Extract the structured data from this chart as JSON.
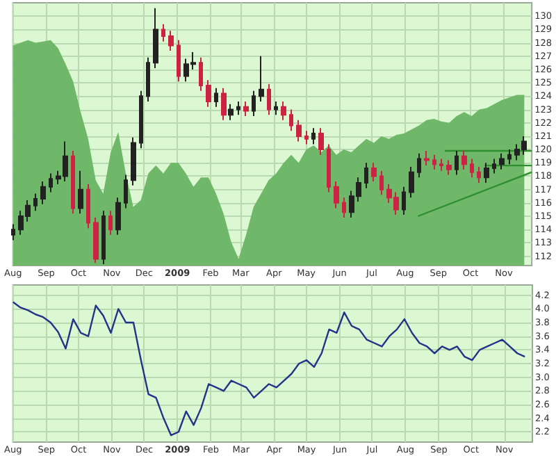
{
  "chart_data": [
    {
      "type": "candlestick",
      "x": [
        "2008-08-01",
        "2008-08-08",
        "2008-08-15",
        "2008-08-22",
        "2008-08-29",
        "2008-09-05",
        "2008-09-12",
        "2008-09-19",
        "2008-09-26",
        "2008-10-03",
        "2008-10-10",
        "2008-10-17",
        "2008-10-24",
        "2008-10-31",
        "2008-11-07",
        "2008-11-14",
        "2008-11-21",
        "2008-11-28",
        "2008-12-05",
        "2008-12-12",
        "2008-12-19",
        "2008-12-26",
        "2009-01-02",
        "2009-01-09",
        "2009-01-16",
        "2009-01-23",
        "2009-01-30",
        "2009-02-06",
        "2009-02-13",
        "2009-02-20",
        "2009-02-27",
        "2009-03-06",
        "2009-03-13",
        "2009-03-20",
        "2009-03-27",
        "2009-04-03",
        "2009-04-10",
        "2009-04-17",
        "2009-04-24",
        "2009-05-01",
        "2009-05-08",
        "2009-05-15",
        "2009-05-22",
        "2009-05-29",
        "2009-06-05",
        "2009-06-12",
        "2009-06-19",
        "2009-06-26",
        "2009-07-03",
        "2009-07-10",
        "2009-07-17",
        "2009-07-24",
        "2009-07-31",
        "2009-08-07",
        "2009-08-14",
        "2009-08-21",
        "2009-08-28",
        "2009-09-04",
        "2009-09-11",
        "2009-09-18",
        "2009-09-25",
        "2009-10-02",
        "2009-10-09",
        "2009-10-16",
        "2009-10-23",
        "2009-10-30",
        "2009-11-06",
        "2009-11-13",
        "2009-11-20"
      ],
      "series": [
        {
          "type": "area",
          "color": "#6fb86a",
          "values": [
            127.8,
            128.0,
            128.2,
            128.0,
            128.1,
            128.2,
            127.6,
            126.4,
            125.1,
            122.8,
            120.8,
            117.7,
            116.7,
            119.8,
            121.3,
            118.2,
            115.7,
            116.2,
            118.2,
            118.8,
            118.2,
            119.0,
            119.0,
            118.2,
            117.2,
            117.9,
            117.9,
            116.7,
            115.2,
            113.1,
            111.8,
            113.6,
            115.7,
            116.7,
            117.7,
            118.2,
            119.0,
            119.6,
            119.0,
            120.0,
            120.3,
            119.8,
            120.3,
            119.6,
            120.0,
            119.8,
            120.3,
            120.8,
            120.5,
            121.0,
            120.8,
            121.1,
            121.2,
            121.5,
            121.8,
            122.2,
            122.3,
            122.1,
            122.0,
            122.5,
            122.8,
            122.5,
            123.0,
            123.1,
            123.4,
            123.7,
            123.9,
            124.1,
            124.1
          ]
        },
        {
          "ohlc": [
            [
              113.6,
              114.4,
              113.2,
              114.0
            ],
            [
              114.0,
              115.4,
              113.6,
              115.0
            ],
            [
              115.0,
              116.2,
              114.6,
              115.8
            ],
            [
              115.8,
              116.7,
              115.4,
              116.3
            ],
            [
              116.3,
              117.6,
              115.9,
              117.2
            ],
            [
              117.2,
              118.2,
              116.8,
              117.8
            ],
            [
              117.8,
              118.4,
              117.4,
              118.0
            ],
            [
              118.0,
              120.6,
              117.6,
              119.5
            ],
            [
              119.5,
              119.9,
              115.2,
              115.6
            ],
            [
              115.6,
              118.4,
              115.2,
              117.0
            ],
            [
              117.0,
              117.4,
              114.1,
              114.5
            ],
            [
              114.5,
              114.9,
              111.5,
              111.8
            ],
            [
              111.8,
              115.4,
              111.4,
              115.0
            ],
            [
              115.0,
              115.4,
              113.6,
              114.0
            ],
            [
              114.0,
              116.4,
              113.6,
              116.0
            ],
            [
              116.0,
              118.1,
              115.6,
              117.7
            ],
            [
              117.7,
              120.9,
              117.3,
              120.5
            ],
            [
              120.5,
              124.4,
              120.1,
              124.0
            ],
            [
              124.0,
              126.9,
              123.6,
              126.5
            ],
            [
              126.5,
              130.6,
              126.1,
              129.0
            ],
            [
              129.0,
              129.4,
              128.1,
              128.5
            ],
            [
              128.5,
              128.9,
              127.4,
              127.8
            ],
            [
              127.8,
              128.2,
              125.1,
              125.5
            ],
            [
              125.5,
              126.8,
              125.1,
              126.4
            ],
            [
              126.4,
              127.3,
              126.0,
              126.5
            ],
            [
              126.5,
              126.9,
              124.4,
              124.8
            ],
            [
              124.8,
              125.2,
              123.2,
              123.6
            ],
            [
              123.6,
              124.6,
              123.2,
              124.2
            ],
            [
              124.2,
              124.6,
              122.2,
              122.6
            ],
            [
              122.6,
              123.4,
              122.2,
              123.0
            ],
            [
              123.0,
              123.6,
              122.6,
              123.2
            ],
            [
              123.2,
              123.6,
              122.5,
              122.9
            ],
            [
              122.9,
              124.4,
              122.5,
              124.0
            ],
            [
              124.0,
              127.0,
              123.6,
              124.5
            ],
            [
              124.5,
              124.9,
              122.6,
              123.0
            ],
            [
              123.0,
              123.6,
              122.6,
              123.2
            ],
            [
              123.2,
              123.6,
              122.2,
              122.6
            ],
            [
              122.6,
              123.0,
              121.4,
              121.8
            ],
            [
              121.8,
              122.2,
              120.6,
              121.0
            ],
            [
              121.0,
              121.4,
              120.4,
              120.8
            ],
            [
              120.8,
              121.6,
              120.4,
              121.2
            ],
            [
              121.2,
              121.6,
              119.6,
              120.0
            ],
            [
              120.0,
              120.4,
              116.8,
              117.2
            ],
            [
              117.2,
              117.6,
              115.6,
              116.0
            ],
            [
              116.0,
              116.4,
              114.9,
              115.3
            ],
            [
              115.3,
              116.9,
              114.9,
              116.5
            ],
            [
              116.5,
              117.9,
              116.1,
              117.5
            ],
            [
              117.5,
              119.0,
              117.1,
              118.6
            ],
            [
              118.6,
              119.0,
              117.6,
              118.0
            ],
            [
              118.0,
              118.4,
              116.6,
              117.0
            ],
            [
              117.0,
              117.4,
              116.0,
              116.4
            ],
            [
              116.4,
              116.8,
              115.1,
              115.5
            ],
            [
              115.5,
              117.2,
              115.1,
              116.8
            ],
            [
              116.8,
              118.7,
              116.4,
              118.3
            ],
            [
              118.3,
              119.7,
              117.9,
              119.3
            ],
            [
              119.3,
              119.9,
              118.8,
              119.2
            ],
            [
              119.2,
              119.6,
              118.5,
              118.9
            ],
            [
              118.9,
              119.3,
              118.4,
              118.8
            ],
            [
              118.8,
              119.2,
              118.1,
              118.5
            ],
            [
              118.5,
              119.9,
              118.1,
              119.5
            ],
            [
              119.5,
              119.9,
              118.5,
              118.9
            ],
            [
              118.9,
              119.3,
              117.9,
              118.3
            ],
            [
              118.3,
              118.7,
              117.5,
              117.9
            ],
            [
              117.9,
              119.0,
              117.5,
              118.6
            ],
            [
              118.6,
              119.3,
              118.2,
              118.9
            ],
            [
              118.9,
              119.7,
              118.5,
              119.3
            ],
            [
              119.3,
              120.0,
              118.9,
              119.6
            ],
            [
              119.6,
              120.4,
              119.2,
              120.0
            ],
            [
              120.0,
              121.0,
              119.6,
              120.6
            ]
          ],
          "colors": [
            "#222222",
            "#222222",
            "#222222",
            "#222222",
            "#222222",
            "#222222",
            "#222222",
            "#222222",
            "#cc2244",
            "#222222",
            "#cc2244",
            "#cc2244",
            "#222222",
            "#cc2244",
            "#222222",
            "#222222",
            "#222222",
            "#222222",
            "#222222",
            "#222222",
            "#cc2244",
            "#cc2244",
            "#cc2244",
            "#222222",
            "#222222",
            "#cc2244",
            "#cc2244",
            "#222222",
            "#cc2244",
            "#222222",
            "#222222",
            "#cc2244",
            "#222222",
            "#222222",
            "#cc2244",
            "#222222",
            "#cc2244",
            "#cc2244",
            "#cc2244",
            "#cc2244",
            "#222222",
            "#cc2244",
            "#cc2244",
            "#cc2244",
            "#cc2244",
            "#222222",
            "#222222",
            "#222222",
            "#cc2244",
            "#cc2244",
            "#cc2244",
            "#cc2244",
            "#222222",
            "#222222",
            "#222222",
            "#cc2244",
            "#cc2244",
            "#cc2244",
            "#cc2244",
            "#222222",
            "#cc2244",
            "#cc2244",
            "#cc2244",
            "#222222",
            "#222222",
            "#222222",
            "#222222",
            "#222222",
            "#222222"
          ]
        },
        {
          "type": "line",
          "color": "#2f8f2f",
          "x": [
            "2009-09-07",
            "2009-11-27"
          ],
          "values": [
            119.9,
            119.9
          ]
        },
        {
          "type": "line",
          "color": "#2f8f2f",
          "x": [
            "2009-10-14",
            "2009-11-27"
          ],
          "values": [
            118.8,
            118.8
          ]
        },
        {
          "type": "line",
          "color": "#2f8f2f",
          "x": [
            "2009-08-13",
            "2009-11-27"
          ],
          "values": [
            115.0,
            118.3
          ]
        }
      ],
      "xlim": [
        "2008-08-01",
        "2009-11-27"
      ],
      "xticks": [
        {
          "value": "2008-08-01",
          "label": "Aug"
        },
        {
          "value": "2008-09-01",
          "label": "Sep"
        },
        {
          "value": "2008-10-01",
          "label": "Oct"
        },
        {
          "value": "2008-11-01",
          "label": "Nov"
        },
        {
          "value": "2008-12-01",
          "label": "Dec"
        },
        {
          "value": "2009-01-01",
          "label": "2009"
        },
        {
          "value": "2009-02-01",
          "label": "Feb"
        },
        {
          "value": "2009-03-01",
          "label": "Mar"
        },
        {
          "value": "2009-04-01",
          "label": "Apr"
        },
        {
          "value": "2009-05-01",
          "label": "May"
        },
        {
          "value": "2009-06-01",
          "label": "Jun"
        },
        {
          "value": "2009-07-01",
          "label": "Jul"
        },
        {
          "value": "2009-08-01",
          "label": "Aug"
        },
        {
          "value": "2009-09-01",
          "label": "Sep"
        },
        {
          "value": "2009-10-01",
          "label": "Oct"
        },
        {
          "value": "2009-11-01",
          "label": "Nov"
        }
      ],
      "ylim": [
        111.3,
        131
      ],
      "yticks": [
        112,
        113,
        114,
        115,
        116,
        117,
        118,
        119,
        120,
        121,
        122,
        123,
        124,
        125,
        126,
        127,
        128,
        129,
        130
      ],
      "grid": true
    },
    {
      "type": "line",
      "x": [
        "2008-08-01",
        "2008-08-08",
        "2008-08-15",
        "2008-08-22",
        "2008-08-29",
        "2008-09-05",
        "2008-09-12",
        "2008-09-19",
        "2008-09-26",
        "2008-10-03",
        "2008-10-10",
        "2008-10-17",
        "2008-10-24",
        "2008-10-31",
        "2008-11-07",
        "2008-11-14",
        "2008-11-21",
        "2008-11-28",
        "2008-12-05",
        "2008-12-12",
        "2008-12-19",
        "2008-12-26",
        "2009-01-02",
        "2009-01-09",
        "2009-01-16",
        "2009-01-23",
        "2009-01-30",
        "2009-02-06",
        "2009-02-13",
        "2009-02-20",
        "2009-02-27",
        "2009-03-06",
        "2009-03-13",
        "2009-03-20",
        "2009-03-27",
        "2009-04-03",
        "2009-04-10",
        "2009-04-17",
        "2009-04-24",
        "2009-05-01",
        "2009-05-08",
        "2009-05-15",
        "2009-05-22",
        "2009-05-29",
        "2009-06-05",
        "2009-06-12",
        "2009-06-19",
        "2009-06-26",
        "2009-07-03",
        "2009-07-10",
        "2009-07-17",
        "2009-07-24",
        "2009-07-31",
        "2009-08-07",
        "2009-08-14",
        "2009-08-21",
        "2009-08-28",
        "2009-09-04",
        "2009-09-11",
        "2009-09-18",
        "2009-09-25",
        "2009-10-02",
        "2009-10-09",
        "2009-10-16",
        "2009-10-23",
        "2009-10-30",
        "2009-11-06",
        "2009-11-13",
        "2009-11-20"
      ],
      "series": [
        {
          "color": "#22338a",
          "values": [
            4.1,
            4.02,
            3.98,
            3.92,
            3.88,
            3.8,
            3.66,
            3.42,
            3.85,
            3.65,
            3.6,
            4.05,
            3.9,
            3.65,
            4.0,
            3.8,
            3.8,
            3.25,
            2.75,
            2.7,
            2.4,
            2.15,
            2.2,
            2.5,
            2.3,
            2.55,
            2.9,
            2.85,
            2.8,
            2.95,
            2.9,
            2.85,
            2.7,
            2.8,
            2.9,
            2.85,
            2.95,
            3.05,
            3.2,
            3.25,
            3.15,
            3.35,
            3.7,
            3.65,
            3.95,
            3.75,
            3.7,
            3.55,
            3.5,
            3.45,
            3.6,
            3.7,
            3.85,
            3.65,
            3.5,
            3.45,
            3.35,
            3.45,
            3.4,
            3.45,
            3.3,
            3.25,
            3.4,
            3.45,
            3.5,
            3.55,
            3.45,
            3.35,
            3.3
          ]
        }
      ],
      "xlim": [
        "2008-08-01",
        "2009-11-27"
      ],
      "xticks": [
        {
          "value": "2008-08-01",
          "label": "Aug"
        },
        {
          "value": "2008-09-01",
          "label": "Sep"
        },
        {
          "value": "2008-10-01",
          "label": "Oct"
        },
        {
          "value": "2008-11-01",
          "label": "Nov"
        },
        {
          "value": "2008-12-01",
          "label": "Dec"
        },
        {
          "value": "2009-01-01",
          "label": "2009"
        },
        {
          "value": "2009-02-01",
          "label": "Feb"
        },
        {
          "value": "2009-03-01",
          "label": "Mar"
        },
        {
          "value": "2009-04-01",
          "label": "Apr"
        },
        {
          "value": "2009-05-01",
          "label": "May"
        },
        {
          "value": "2009-06-01",
          "label": "Jun"
        },
        {
          "value": "2009-07-01",
          "label": "Jul"
        },
        {
          "value": "2009-08-01",
          "label": "Aug"
        },
        {
          "value": "2009-09-01",
          "label": "Sep"
        },
        {
          "value": "2009-10-01",
          "label": "Oct"
        },
        {
          "value": "2009-11-01",
          "label": "Nov"
        }
      ],
      "ylim": [
        2.05,
        4.35
      ],
      "yticks": [
        2.2,
        2.4,
        2.6,
        2.8,
        {
          "value": 3.0,
          "label": "3.0"
        },
        3.2,
        3.4,
        3.6,
        3.8,
        {
          "value": 4.0,
          "label": "4.0"
        },
        4.2
      ],
      "grid": true
    }
  ]
}
